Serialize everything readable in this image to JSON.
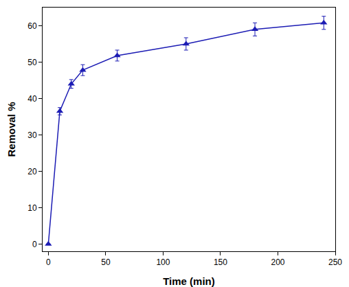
{
  "chart_data": {
    "type": "line",
    "x_label": "Time (min)",
    "y_label": "Removal %",
    "x": [
      0,
      10,
      20,
      30,
      60,
      120,
      180,
      240
    ],
    "values": [
      0,
      36.5,
      44,
      47.8,
      51.8,
      55,
      59,
      60.8
    ],
    "errors": [
      0,
      1,
      1.2,
      1.5,
      1.5,
      1.7,
      1.8,
      1.8
    ],
    "color": "#1c1cb4",
    "marker": "triangle-up",
    "line_style": "solid",
    "xlim": [
      -5,
      250
    ],
    "ylim": [
      -2,
      65
    ],
    "xticks": [
      0,
      50,
      100,
      150,
      200,
      250
    ],
    "yticks": [
      0,
      10,
      20,
      30,
      40,
      50,
      60
    ],
    "grid": false
  }
}
